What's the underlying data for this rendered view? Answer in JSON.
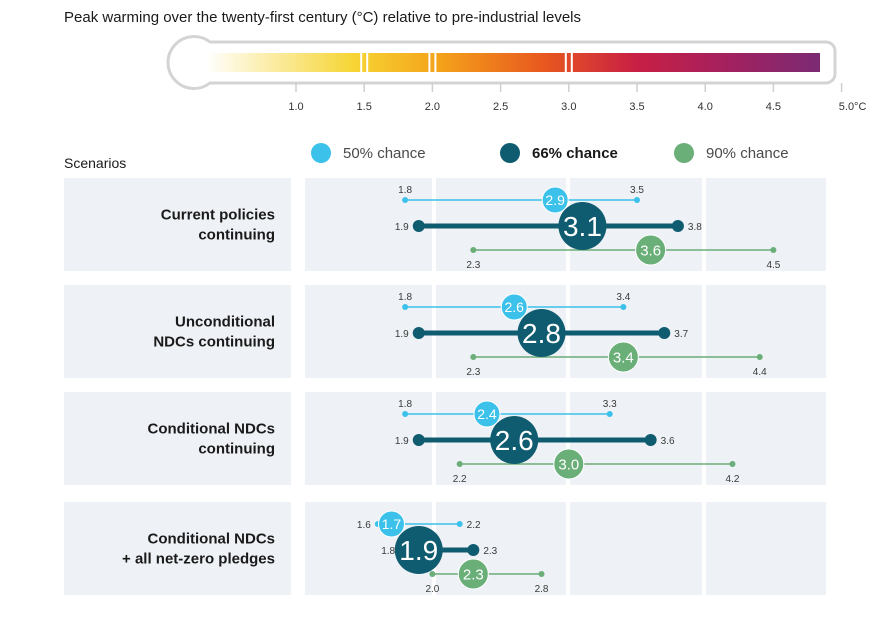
{
  "chart_data": {
    "type": "dot-range",
    "title": "Peak warming over the twenty-first century (°C) relative to pre-industrial levels",
    "scale": {
      "ticks": [
        "1.0",
        "1.5",
        "2.0",
        "2.5",
        "3.0",
        "3.5",
        "4.0",
        "4.5",
        "5.0°C"
      ],
      "tick_values": [
        1.0,
        1.5,
        2.0,
        2.5,
        3.0,
        3.5,
        4.0,
        4.5,
        5.0
      ],
      "range": [
        1.0,
        5.0
      ],
      "gradient_colors": [
        "#ffffff",
        "#f6d534",
        "#f4a21a",
        "#e8581f",
        "#c81f44",
        "#a3215f",
        "#7b2a73"
      ]
    },
    "scenarios_header": "Scenarios",
    "legend": [
      {
        "label": "50% chance",
        "color": "#3cc1ea",
        "bold": false
      },
      {
        "label": "66% chance",
        "color": "#0f5c70",
        "bold": true
      },
      {
        "label": "90% chance",
        "color": "#6aae78",
        "bold": false
      }
    ],
    "scenarios": [
      {
        "label_lines": [
          "Current policies",
          "continuing"
        ],
        "p50": {
          "low": 1.8,
          "central": 2.9,
          "high": 3.5,
          "low_label": "1.8",
          "central_label": "2.9",
          "high_label": "3.5"
        },
        "p66": {
          "low": 1.9,
          "central": 3.1,
          "high": 3.8,
          "low_label": "1.9",
          "central_label": "3.1",
          "high_label": "3.8"
        },
        "p90": {
          "low": 2.3,
          "central": 3.6,
          "high": 4.5,
          "low_label": "2.3",
          "central_label": "3.6",
          "high_label": "4.5"
        }
      },
      {
        "label_lines": [
          "Unconditional",
          "NDCs continuing"
        ],
        "p50": {
          "low": 1.8,
          "central": 2.6,
          "high": 3.4,
          "low_label": "1.8",
          "central_label": "2.6",
          "high_label": "3.4"
        },
        "p66": {
          "low": 1.9,
          "central": 2.8,
          "high": 3.7,
          "low_label": "1.9",
          "central_label": "2.8",
          "high_label": "3.7"
        },
        "p90": {
          "low": 2.3,
          "central": 3.4,
          "high": 4.4,
          "low_label": "2.3",
          "central_label": "3.4",
          "high_label": "4.4"
        }
      },
      {
        "label_lines": [
          "Conditional NDCs",
          "continuing"
        ],
        "p50": {
          "low": 1.8,
          "central": 2.4,
          "high": 3.3,
          "low_label": "1.8",
          "central_label": "2.4",
          "high_label": "3.3"
        },
        "p66": {
          "low": 1.9,
          "central": 2.6,
          "high": 3.6,
          "low_label": "1.9",
          "central_label": "2.6",
          "high_label": "3.6"
        },
        "p90": {
          "low": 2.2,
          "central": 3.0,
          "high": 4.2,
          "low_label": "2.2",
          "central_label": "3.0",
          "high_label": "4.2"
        }
      },
      {
        "label_lines": [
          "Conditional NDCs",
          "+ all net-zero pledges"
        ],
        "p50": {
          "low": 1.6,
          "central": 1.7,
          "high": 2.2,
          "low_label": "1.6",
          "central_label": "1.7",
          "high_label": "2.2"
        },
        "p66": {
          "low": 1.8,
          "central": 1.9,
          "high": 2.3,
          "low_label": "1.8",
          "central_label": "1.9",
          "high_label": "2.3"
        },
        "p90": {
          "low": 2.0,
          "central": 2.3,
          "high": 2.8,
          "low_label": "2.0",
          "central_label": "2.3",
          "high_label": "2.8"
        }
      }
    ]
  }
}
